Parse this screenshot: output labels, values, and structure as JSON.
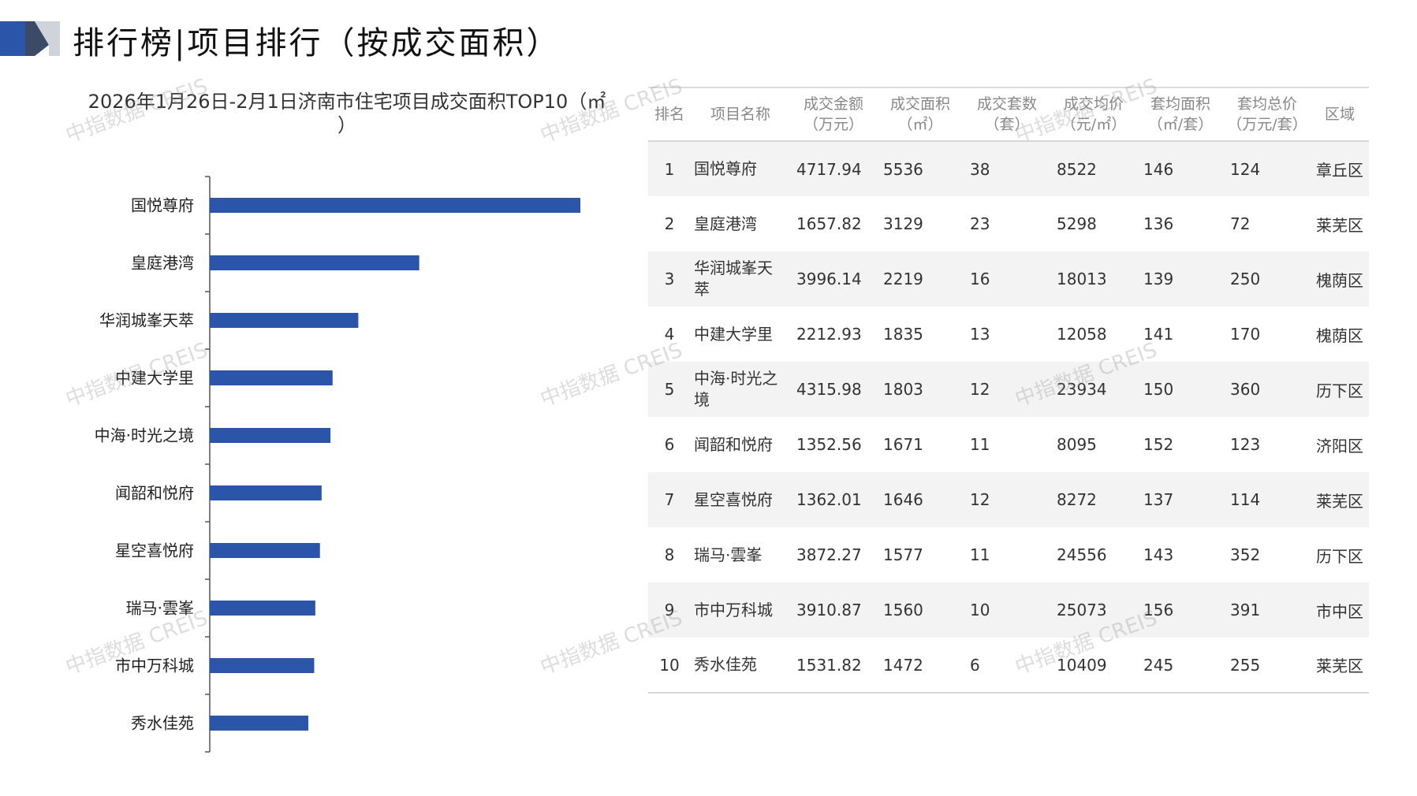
{
  "header": {
    "title": "排行榜|项目排行（按成交面积）"
  },
  "chart_data": {
    "type": "bar",
    "orientation": "horizontal",
    "title_line1": "2026年1月26日-2月1日济南市住宅项目成交面积TOP10（㎡",
    "title_line2": "）",
    "categories": [
      "国悦尊府",
      "皇庭港湾",
      "华润城峯天萃",
      "中建大学里",
      "中海·时光之境",
      "闻韶和悦府",
      "星空喜悦府",
      "瑞马·雲峯",
      "市中万科城",
      "秀水佳苑"
    ],
    "values": [
      5536,
      3129,
      2219,
      1835,
      1803,
      1671,
      1646,
      1577,
      1560,
      1472
    ],
    "bar_color": "#2b55a8",
    "grid": false,
    "legend": false
  },
  "table": {
    "headers": [
      [
        "排名"
      ],
      [
        "项目名称"
      ],
      [
        "成交金额",
        "（万元）"
      ],
      [
        "成交面积",
        "（㎡）"
      ],
      [
        "成交套数",
        "（套）"
      ],
      [
        "成交均价",
        "（元/㎡）"
      ],
      [
        "套均面积",
        "（㎡/套）"
      ],
      [
        "套均总价",
        "（万元/套）"
      ],
      [
        "区域"
      ]
    ],
    "rows": [
      {
        "rank": "1",
        "name": "国悦尊府",
        "amount": "4717.94",
        "area": "5536",
        "units": "38",
        "avg_price": "8522",
        "avg_area": "146",
        "avg_total": "124",
        "district": "章丘区"
      },
      {
        "rank": "2",
        "name": "皇庭港湾",
        "amount": "1657.82",
        "area": "3129",
        "units": "23",
        "avg_price": "5298",
        "avg_area": "136",
        "avg_total": "72",
        "district": "莱芜区"
      },
      {
        "rank": "3",
        "name": "华润城峯天萃",
        "amount": "3996.14",
        "area": "2219",
        "units": "16",
        "avg_price": "18013",
        "avg_area": "139",
        "avg_total": "250",
        "district": "槐荫区"
      },
      {
        "rank": "4",
        "name": "中建大学里",
        "amount": "2212.93",
        "area": "1835",
        "units": "13",
        "avg_price": "12058",
        "avg_area": "141",
        "avg_total": "170",
        "district": "槐荫区"
      },
      {
        "rank": "5",
        "name": "中海·时光之境",
        "amount": "4315.98",
        "area": "1803",
        "units": "12",
        "avg_price": "23934",
        "avg_area": "150",
        "avg_total": "360",
        "district": "历下区"
      },
      {
        "rank": "6",
        "name": "闻韶和悦府",
        "amount": "1352.56",
        "area": "1671",
        "units": "11",
        "avg_price": "8095",
        "avg_area": "152",
        "avg_total": "123",
        "district": "济阳区"
      },
      {
        "rank": "7",
        "name": "星空喜悦府",
        "amount": "1362.01",
        "area": "1646",
        "units": "12",
        "avg_price": "8272",
        "avg_area": "137",
        "avg_total": "114",
        "district": "莱芜区"
      },
      {
        "rank": "8",
        "name": "瑞马·雲峯",
        "amount": "3872.27",
        "area": "1577",
        "units": "11",
        "avg_price": "24556",
        "avg_area": "143",
        "avg_total": "352",
        "district": "历下区"
      },
      {
        "rank": "9",
        "name": "市中万科城",
        "amount": "3910.87",
        "area": "1560",
        "units": "10",
        "avg_price": "25073",
        "avg_area": "156",
        "avg_total": "391",
        "district": "市中区"
      },
      {
        "rank": "10",
        "name": "秀水佳苑",
        "amount": "1531.82",
        "area": "1472",
        "units": "6",
        "avg_price": "10409",
        "avg_area": "245",
        "avg_total": "255",
        "district": "莱芜区"
      }
    ]
  },
  "watermark": "中指数据 CREIS"
}
